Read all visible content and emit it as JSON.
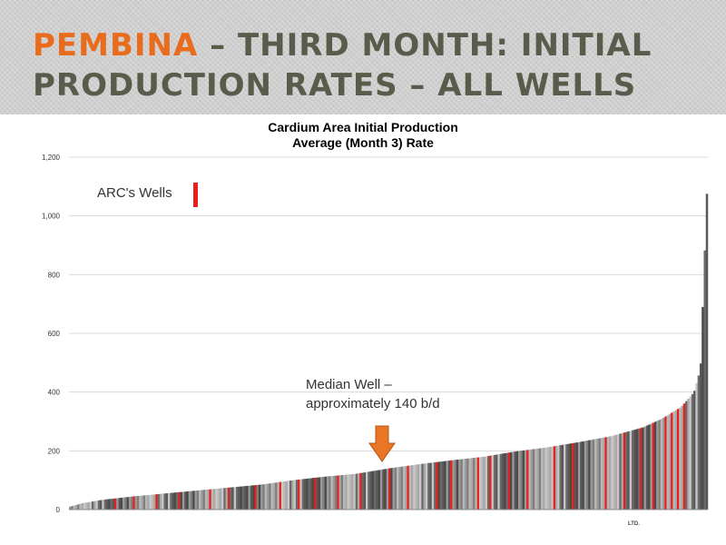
{
  "slide": {
    "title_accent": "PEMBINA",
    "title_line1_rest": " – THIRD MONTH:  INITIAL",
    "title_line2": "PRODUCTION RATES – ALL WELLS",
    "footer_mark": "LTD."
  },
  "colors": {
    "accent": "#e96b1c",
    "title": "#5b5b4c",
    "arc_bar": "#e8201c",
    "median_arrow": "#e97624"
  },
  "chart_data": {
    "type": "bar",
    "title": "Cardium Area Initial Production",
    "subtitle": "Average (Month 3) Rate",
    "xlabel": "",
    "ylabel": "",
    "ylim": [
      0,
      1200
    ],
    "yticks": [
      "0",
      "200",
      "400",
      "600",
      "800",
      "1,000",
      "1,200"
    ],
    "grid": true,
    "legend": {
      "label": "ARC's Wells",
      "position": "top-left"
    },
    "series": [
      {
        "name": "ARC's Wells",
        "color": "#e8201c"
      }
    ],
    "annotations": [
      {
        "text_line1": "Median Well –",
        "text_line2": "approximately 140 b/d",
        "value": 140
      }
    ],
    "wells": {
      "count": 310,
      "sorted": "ascending",
      "rate_profile": [
        [
          0,
          10
        ],
        [
          0.02,
          22
        ],
        [
          0.05,
          33
        ],
        [
          0.1,
          45
        ],
        [
          0.15,
          55
        ],
        [
          0.2,
          65
        ],
        [
          0.25,
          75
        ],
        [
          0.3,
          85
        ],
        [
          0.35,
          100
        ],
        [
          0.4,
          112
        ],
        [
          0.45,
          122
        ],
        [
          0.5,
          140
        ],
        [
          0.55,
          155
        ],
        [
          0.6,
          168
        ],
        [
          0.65,
          180
        ],
        [
          0.7,
          198
        ],
        [
          0.75,
          212
        ],
        [
          0.8,
          230
        ],
        [
          0.85,
          250
        ],
        [
          0.9,
          280
        ],
        [
          0.93,
          310
        ],
        [
          0.96,
          350
        ],
        [
          0.98,
          400
        ],
        [
          0.99,
          480
        ],
        [
          1.0,
          1075
        ]
      ],
      "arc_well_positions": [
        0.07,
        0.1,
        0.135,
        0.17,
        0.22,
        0.25,
        0.29,
        0.33,
        0.36,
        0.385,
        0.42,
        0.455,
        0.5,
        0.53,
        0.575,
        0.6,
        0.64,
        0.66,
        0.69,
        0.72,
        0.76,
        0.79,
        0.84,
        0.87,
        0.895,
        0.915,
        0.935,
        0.945,
        0.955,
        0.965
      ]
    }
  }
}
